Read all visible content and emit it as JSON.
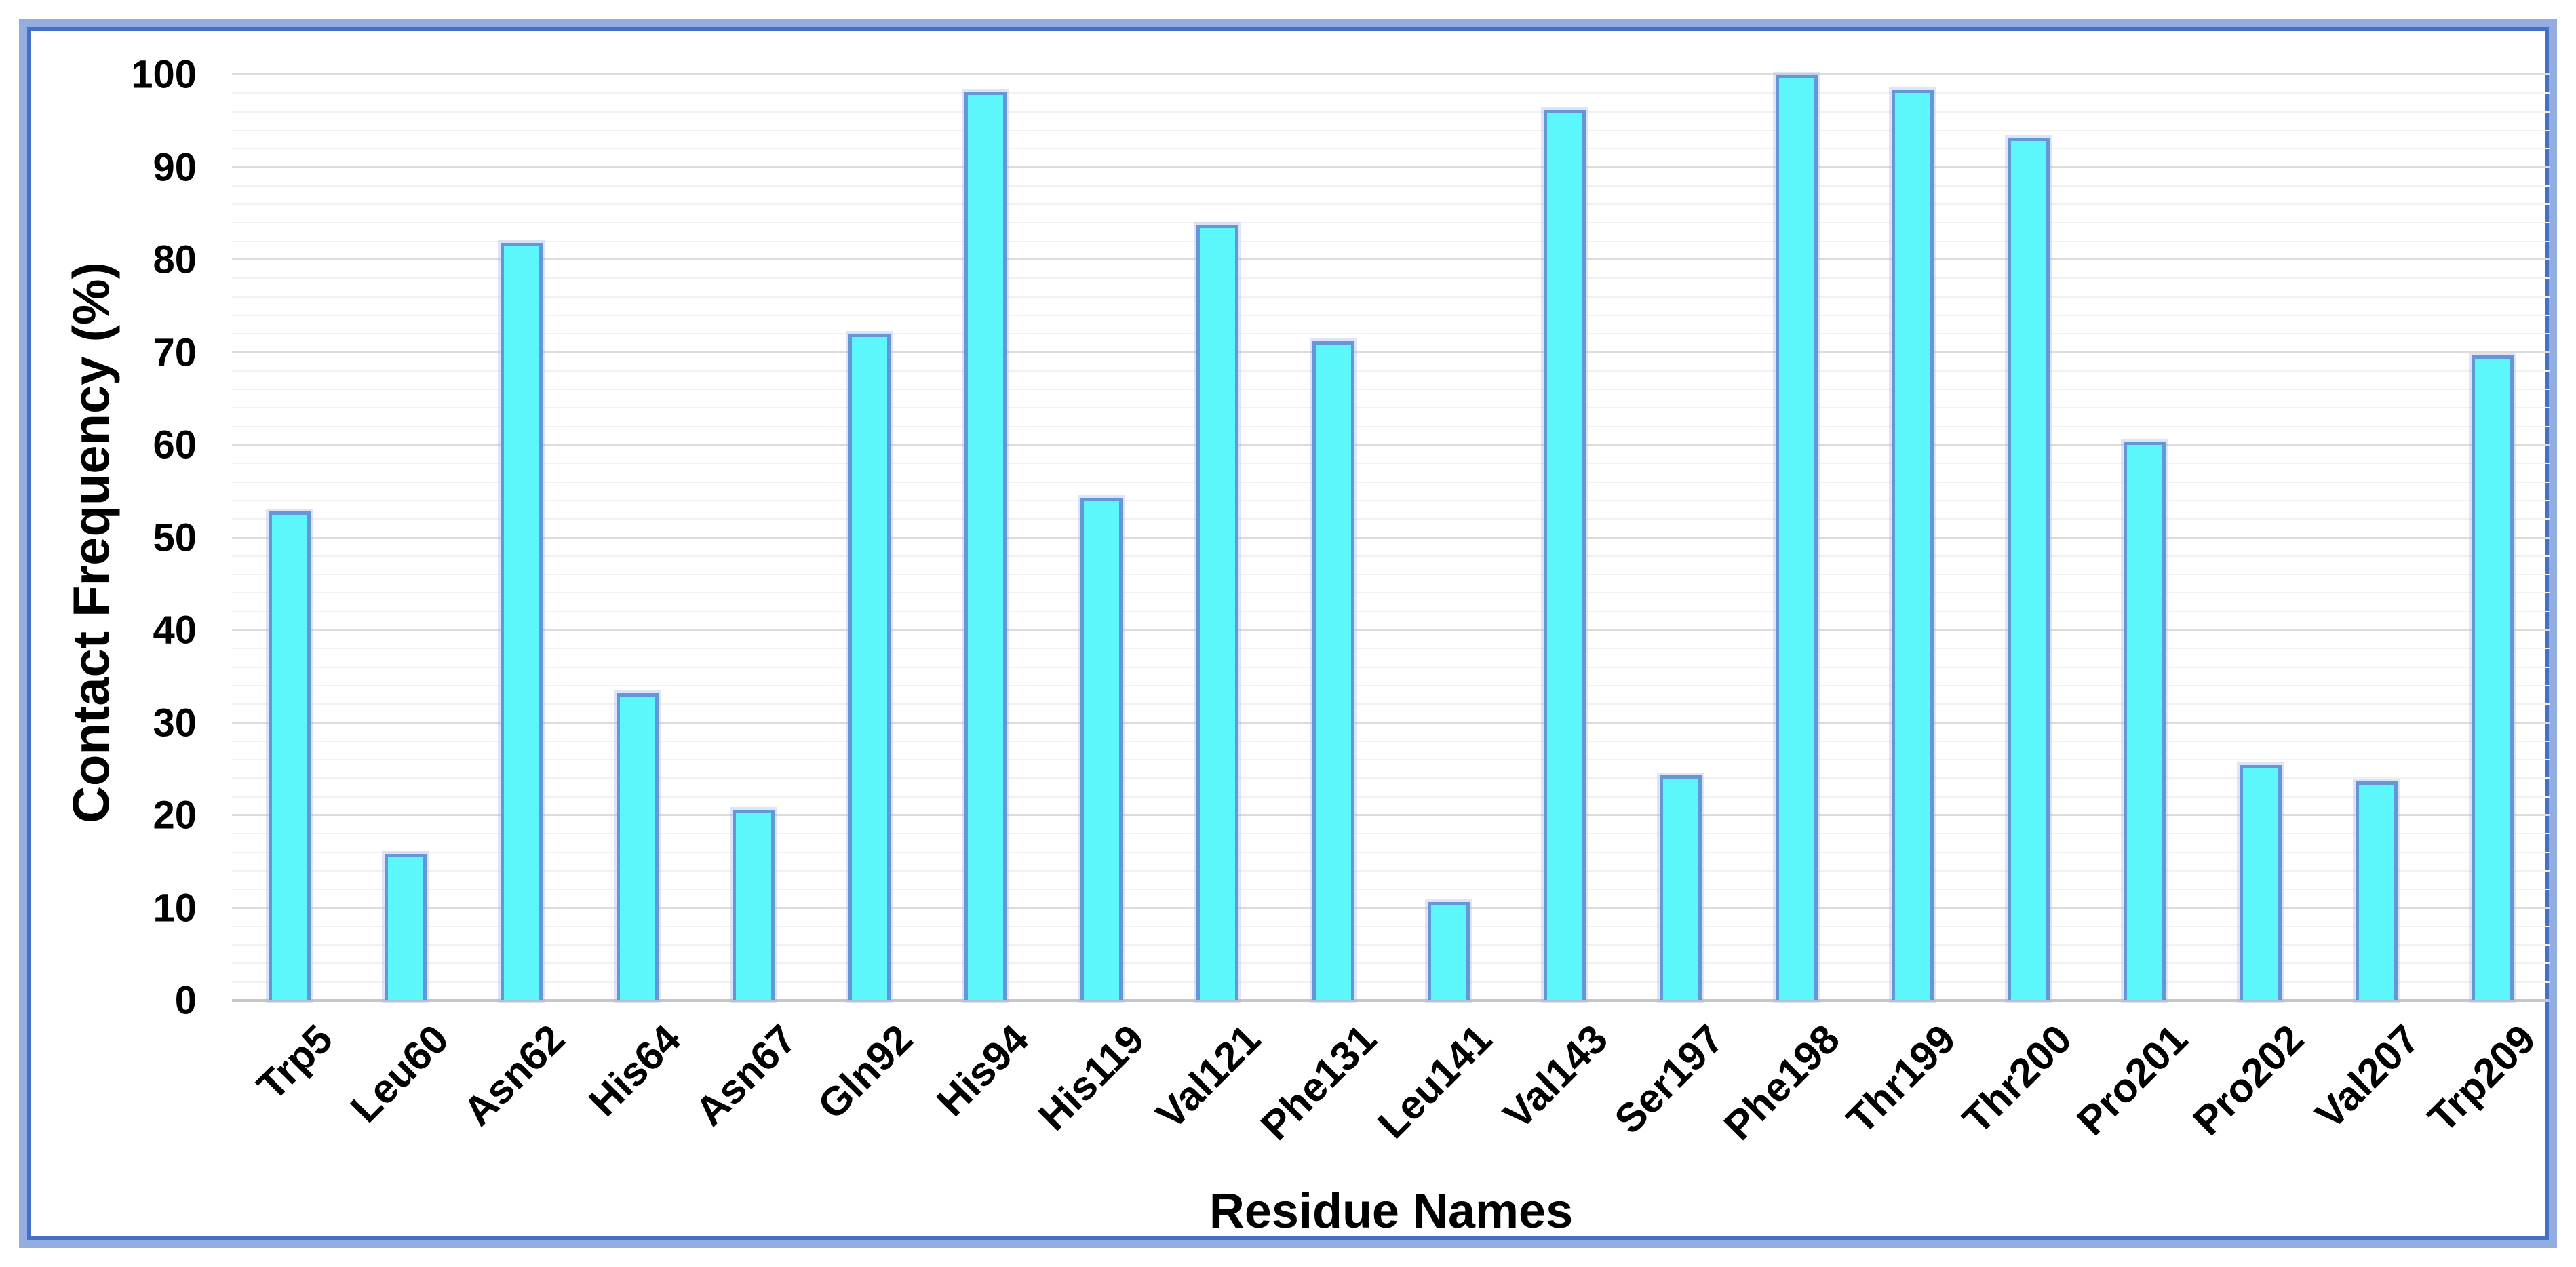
{
  "chart_data": {
    "type": "bar",
    "title": "",
    "xlabel": "Residue Names",
    "ylabel": "Contact Frequency (%)",
    "categories": [
      "Trp5",
      "Leu60",
      "Asn62",
      "His64",
      "Asn67",
      "Gln92",
      "His94",
      "His119",
      "Val121",
      "Phe131",
      "Leu141",
      "Val143",
      "Ser197",
      "Phe198",
      "Thr199",
      "Thr200",
      "Pro201",
      "Pro202",
      "Val207",
      "Trp209"
    ],
    "values": [
      52.8,
      15.8,
      81.8,
      33.2,
      20.6,
      72.0,
      98.2,
      54.3,
      83.8,
      71.2,
      10.6,
      96.2,
      24.3,
      100.0,
      98.4,
      93.2,
      60.4,
      25.4,
      23.7,
      69.7
    ],
    "ylim": [
      0,
      100
    ],
    "y_major_ticks": [
      0,
      10,
      20,
      30,
      40,
      50,
      60,
      70,
      80,
      90,
      100
    ],
    "y_minor_step": 2,
    "grid": "horizontal",
    "legend": "none",
    "colors": {
      "bar_fill": "#5BF7FB",
      "bar_border": "#6496D8",
      "frame_outer": "#94ADE0",
      "frame_inner": "#4470C8",
      "grid_major": "#DCDCDC",
      "grid_minor": "#F1F1F1",
      "axis_line": "#C6C6C6",
      "text": "#000000",
      "background": "#FFFFFF"
    }
  }
}
